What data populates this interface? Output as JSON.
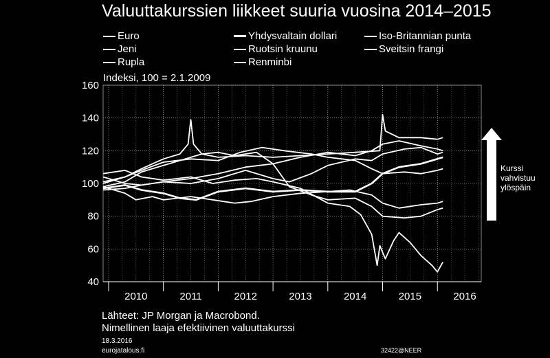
{
  "title": "Valuuttakurssien liikkeet suuria vuosina 2014–2015",
  "legend": {
    "items": [
      {
        "label": "Euro",
        "bold": false
      },
      {
        "label": "Yhdysvaltain dollari",
        "bold": true
      },
      {
        "label": "Iso-Britannian punta",
        "bold": false
      },
      {
        "label": "Jeni",
        "bold": false
      },
      {
        "label": "Ruotsin kruunu",
        "bold": false
      },
      {
        "label": "Sveitsin frangi",
        "bold": false
      },
      {
        "label": "Rupla",
        "bold": false
      },
      {
        "label": "Renminbi",
        "bold": false
      }
    ]
  },
  "index_label": "Indeksi, 100 = 2.1.2009",
  "note": {
    "line1": "Kurssi",
    "line2": "vahvistuu",
    "line3": "ylöspäin"
  },
  "footer": {
    "source1": "Lähteet: JP Morgan ja Macrobond.",
    "source2": "Nimellinen laaja efektiivinen valuuttakurssi",
    "date": "18.3.2016",
    "site": "eurojatalous.fi",
    "code": "32422@NEER"
  },
  "colors": {
    "background": "#000000",
    "line": "#ffffff"
  },
  "chart_data": {
    "type": "line",
    "title": "Valuuttakurssien liikkeet suuria vuosina 2014–2015",
    "ylabel": "Indeksi, 100 = 2.1.2009",
    "xlim": [
      2009.9,
      2016.8
    ],
    "ylim": [
      40,
      160
    ],
    "yticks": [
      40,
      60,
      80,
      100,
      120,
      140,
      160
    ],
    "xticks": [
      "2010",
      "2011",
      "2012",
      "2013",
      "2014",
      "2015",
      "2016"
    ],
    "grid": true,
    "legend_position": "top",
    "series": [
      {
        "name": "Euro",
        "points": [
          [
            2009.9,
            98
          ],
          [
            2010.3,
            94
          ],
          [
            2010.5,
            90
          ],
          [
            2010.8,
            92
          ],
          [
            2011.0,
            90
          ],
          [
            2011.5,
            92
          ],
          [
            2011.9,
            90
          ],
          [
            2012.3,
            88
          ],
          [
            2012.6,
            89
          ],
          [
            2013.0,
            92
          ],
          [
            2013.5,
            94
          ],
          [
            2014.0,
            95
          ],
          [
            2014.4,
            96
          ],
          [
            2014.8,
            93
          ],
          [
            2015.0,
            88
          ],
          [
            2015.3,
            85
          ],
          [
            2015.7,
            87
          ],
          [
            2016.0,
            88
          ],
          [
            2016.1,
            89
          ]
        ]
      },
      {
        "name": "Yhdysvaltain dollari",
        "points": [
          [
            2009.9,
            97
          ],
          [
            2010.3,
            99
          ],
          [
            2010.6,
            96
          ],
          [
            2011.0,
            94
          ],
          [
            2011.3,
            91
          ],
          [
            2011.6,
            90
          ],
          [
            2012.0,
            95
          ],
          [
            2012.5,
            97
          ],
          [
            2013.0,
            95
          ],
          [
            2013.5,
            96
          ],
          [
            2014.0,
            95
          ],
          [
            2014.5,
            95
          ],
          [
            2014.8,
            100
          ],
          [
            2015.0,
            106
          ],
          [
            2015.3,
            110
          ],
          [
            2015.7,
            112
          ],
          [
            2016.0,
            115
          ],
          [
            2016.1,
            116
          ]
        ]
      },
      {
        "name": "Iso-Britannian punta",
        "points": [
          [
            2009.9,
            104
          ],
          [
            2010.3,
            100
          ],
          [
            2010.6,
            99
          ],
          [
            2011.0,
            101
          ],
          [
            2011.5,
            100
          ],
          [
            2012.0,
            103
          ],
          [
            2012.5,
            108
          ],
          [
            2013.0,
            103
          ],
          [
            2013.3,
            101
          ],
          [
            2013.7,
            106
          ],
          [
            2014.0,
            111
          ],
          [
            2014.5,
            115
          ],
          [
            2014.8,
            114
          ],
          [
            2015.0,
            118
          ],
          [
            2015.4,
            121
          ],
          [
            2015.7,
            122
          ],
          [
            2016.0,
            118
          ],
          [
            2016.1,
            119
          ]
        ]
      },
      {
        "name": "Jeni",
        "points": [
          [
            2009.9,
            98
          ],
          [
            2010.3,
            101
          ],
          [
            2010.6,
            107
          ],
          [
            2011.0,
            111
          ],
          [
            2011.3,
            114
          ],
          [
            2011.7,
            118
          ],
          [
            2012.0,
            119
          ],
          [
            2012.3,
            117
          ],
          [
            2012.7,
            119
          ],
          [
            2013.0,
            112
          ],
          [
            2013.3,
            98
          ],
          [
            2013.7,
            93
          ],
          [
            2014.0,
            90
          ],
          [
            2014.5,
            91
          ],
          [
            2014.8,
            86
          ],
          [
            2015.0,
            80
          ],
          [
            2015.4,
            79
          ],
          [
            2015.7,
            80
          ],
          [
            2016.0,
            84
          ],
          [
            2016.1,
            85
          ]
        ]
      },
      {
        "name": "Ruotsin kruunu",
        "points": [
          [
            2009.9,
            101
          ],
          [
            2010.3,
            104
          ],
          [
            2010.6,
            108
          ],
          [
            2011.0,
            113
          ],
          [
            2011.5,
            115
          ],
          [
            2012.0,
            114
          ],
          [
            2012.4,
            119
          ],
          [
            2012.8,
            122
          ],
          [
            2013.2,
            120
          ],
          [
            2013.7,
            118
          ],
          [
            2014.0,
            116
          ],
          [
            2014.5,
            114
          ],
          [
            2014.8,
            109
          ],
          [
            2015.0,
            106
          ],
          [
            2015.4,
            107
          ],
          [
            2015.7,
            106
          ],
          [
            2016.0,
            108
          ],
          [
            2016.1,
            109
          ]
        ]
      },
      {
        "name": "Sveitsin frangi",
        "points": [
          [
            2009.9,
            100
          ],
          [
            2010.3,
            104
          ],
          [
            2010.6,
            109
          ],
          [
            2011.0,
            115
          ],
          [
            2011.3,
            118
          ],
          [
            2011.45,
            124
          ],
          [
            2011.5,
            139
          ],
          [
            2011.55,
            124
          ],
          [
            2011.7,
            118
          ],
          [
            2012.0,
            116
          ],
          [
            2012.5,
            117
          ],
          [
            2013.0,
            116
          ],
          [
            2013.5,
            117
          ],
          [
            2014.0,
            118
          ],
          [
            2014.5,
            119
          ],
          [
            2014.95,
            120
          ],
          [
            2015.0,
            142
          ],
          [
            2015.05,
            132
          ],
          [
            2015.3,
            128
          ],
          [
            2015.7,
            128
          ],
          [
            2016.0,
            127
          ],
          [
            2016.1,
            128
          ]
        ]
      },
      {
        "name": "Rupla",
        "points": [
          [
            2009.9,
            106
          ],
          [
            2010.3,
            108
          ],
          [
            2010.6,
            104
          ],
          [
            2011.0,
            102
          ],
          [
            2011.5,
            104
          ],
          [
            2011.9,
            100
          ],
          [
            2012.3,
            102
          ],
          [
            2012.7,
            103
          ],
          [
            2013.0,
            101
          ],
          [
            2013.5,
            97
          ],
          [
            2014.0,
            88
          ],
          [
            2014.4,
            86
          ],
          [
            2014.6,
            81
          ],
          [
            2014.8,
            69
          ],
          [
            2014.9,
            50
          ],
          [
            2014.95,
            62
          ],
          [
            2015.05,
            54
          ],
          [
            2015.2,
            65
          ],
          [
            2015.3,
            70
          ],
          [
            2015.5,
            64
          ],
          [
            2015.7,
            56
          ],
          [
            2015.9,
            50
          ],
          [
            2016.0,
            46
          ],
          [
            2016.1,
            52
          ]
        ]
      },
      {
        "name": "Renminbi",
        "points": [
          [
            2009.9,
            96
          ],
          [
            2010.3,
            97
          ],
          [
            2010.6,
            99
          ],
          [
            2011.0,
            101
          ],
          [
            2011.5,
            103
          ],
          [
            2012.0,
            106
          ],
          [
            2012.5,
            110
          ],
          [
            2013.0,
            112
          ],
          [
            2013.5,
            116
          ],
          [
            2014.0,
            119
          ],
          [
            2014.5,
            117
          ],
          [
            2014.8,
            120
          ],
          [
            2015.0,
            124
          ],
          [
            2015.3,
            126
          ],
          [
            2015.7,
            123
          ],
          [
            2016.0,
            121
          ],
          [
            2016.1,
            120
          ]
        ]
      }
    ]
  }
}
